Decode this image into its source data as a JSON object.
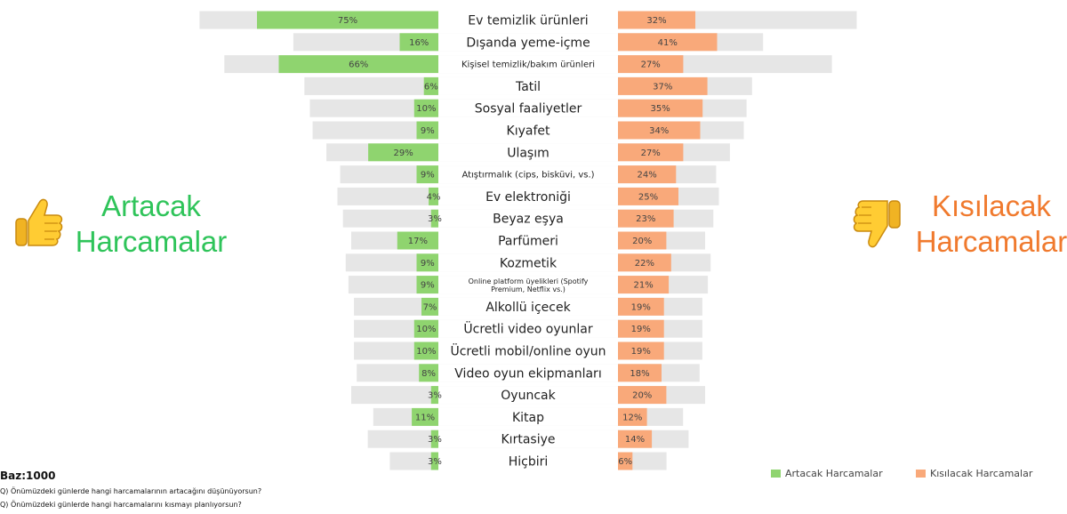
{
  "chart_data": {
    "type": "bar",
    "categories": [
      "Ev temizlik ürünleri",
      "Dışanda yeme-içme",
      "Kişisel temizlik/bakım ürünleri",
      "Tatil",
      "Sosyal faaliyetler",
      "Kıyafet",
      "Ulaşım",
      "Atıştırmalık (cips, bisküvi, vs.)",
      "Ev elektroniği",
      "Beyaz eşya",
      "Parfümeri",
      "Kozmetik",
      "Online platform üyelikleri (Spotify Premium, Netflix vs.)",
      "Alkollü içecek",
      "Ücretli video oyunlar",
      "Ücretli mobil/online oyun",
      "Video oyun ekipmanları",
      "Oyuncak",
      "Kitap",
      "Kırtasiye",
      "Hiçbiri"
    ],
    "series": [
      {
        "name": "Artacak Harcamalar",
        "values": [
          75,
          16,
          66,
          6,
          10,
          9,
          29,
          9,
          4,
          3,
          17,
          9,
          9,
          7,
          10,
          10,
          8,
          3,
          11,
          3,
          3
        ],
        "labels": [
          "75%",
          "16%",
          "66%",
          "6%",
          "10%",
          "9%",
          "29%",
          "9%",
          "4%",
          "3%",
          "17%",
          "9%",
          "9%",
          "7%",
          "10%",
          "10%",
          "8%",
          "3%",
          "11%",
          "3%",
          "3%"
        ]
      },
      {
        "name": "Kısılacak Harcamalar",
        "values": [
          32,
          41,
          27,
          37,
          35,
          34,
          27,
          24,
          25,
          23,
          20,
          22,
          21,
          19,
          19,
          19,
          18,
          20,
          12,
          14,
          6
        ],
        "labels": [
          "32%",
          "41%",
          "27%",
          "37%",
          "35%",
          "34%",
          "27%",
          "24%",
          "25%",
          "23%",
          "20%",
          "22%",
          "21%",
          "19%",
          "19%",
          "19%",
          "18%",
          "20%",
          "12%",
          "14%",
          "6%"
        ]
      }
    ],
    "colors": {
      "increase": "#8fd46f",
      "decrease": "#f9a97a",
      "background_bar": "#e6e6e6"
    }
  },
  "side_labels": {
    "left_line1": "Artacak",
    "left_line2": "Harcamalar",
    "right_line1": "Kısılacak",
    "right_line2": "Harcamalar"
  },
  "icons": {
    "left": "thumbs-up-icon",
    "right": "thumbs-down-icon"
  },
  "legend": {
    "increase": "Artacak Harcamalar",
    "decrease": "Kısılacak Harcamalar"
  },
  "footer": {
    "base": "Baz:1000",
    "q1": "Q) Önümüzdeki günlerde hangi harcamalarının artacağını düşünüyorsun?",
    "q2": "Q) Önümüzdeki günlerde hangi harcamalarını kısmayı planlıyorsun?"
  }
}
